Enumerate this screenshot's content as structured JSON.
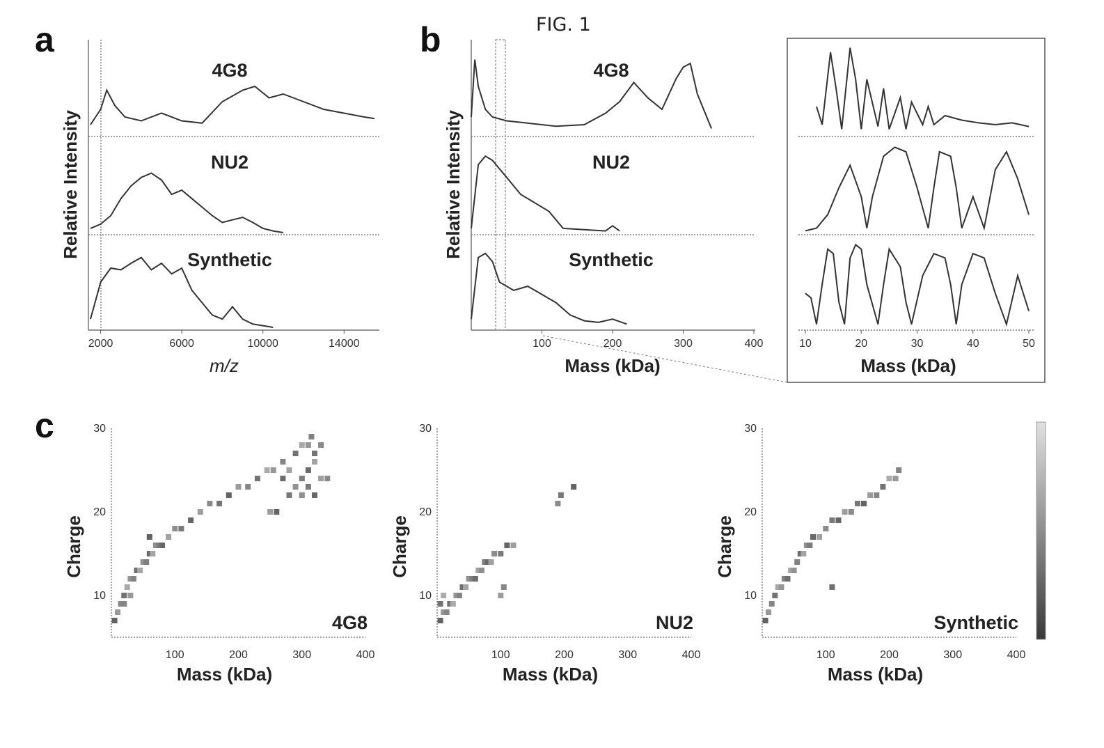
{
  "figure": {
    "title": "FIG. 1"
  },
  "panel_labels": {
    "a": "a",
    "b": "b",
    "c": "c"
  },
  "colors": {
    "trace": "#333333",
    "heat_low": "#d8d8d8",
    "heat_high": "#3a3a3a"
  },
  "chart_data": [
    {
      "id": "panel-a",
      "type": "line",
      "title": "",
      "xlabel": "m/z",
      "ylabel": "Relative Intensity",
      "xlim": [
        1500,
        15500
      ],
      "xticks": [
        "2000",
        "6000",
        "10000",
        "14000"
      ],
      "tick_values": [
        2000,
        6000,
        10000,
        14000
      ],
      "series": [
        {
          "name": "4G8",
          "x": [
            1500,
            2000,
            2300,
            2700,
            3200,
            4000,
            5000,
            6000,
            7000,
            8000,
            9000,
            9600,
            10300,
            11000,
            12000,
            13000,
            14000,
            15000,
            15500
          ],
          "y": [
            0.1,
            0.3,
            0.55,
            0.35,
            0.2,
            0.15,
            0.25,
            0.15,
            0.12,
            0.4,
            0.55,
            0.6,
            0.45,
            0.5,
            0.4,
            0.3,
            0.25,
            0.2,
            0.18
          ]
        },
        {
          "name": "NU2",
          "x": [
            1500,
            2000,
            2500,
            3000,
            3500,
            4000,
            4500,
            5000,
            5500,
            6000,
            6500,
            7000,
            7500,
            8000,
            8500,
            9000,
            9500,
            10000,
            10500,
            11000
          ],
          "y": [
            0.05,
            0.1,
            0.2,
            0.4,
            0.55,
            0.65,
            0.7,
            0.62,
            0.45,
            0.5,
            0.4,
            0.3,
            0.2,
            0.12,
            0.15,
            0.18,
            0.12,
            0.05,
            0.02,
            0.0
          ]
        },
        {
          "name": "Synthetic",
          "x": [
            1500,
            2000,
            2500,
            3000,
            3500,
            4000,
            4500,
            5000,
            5500,
            6000,
            6500,
            7000,
            7500,
            8000,
            8500,
            9000,
            9500,
            10000,
            10500
          ],
          "y": [
            0.1,
            0.55,
            0.72,
            0.7,
            0.78,
            0.85,
            0.7,
            0.78,
            0.65,
            0.72,
            0.45,
            0.3,
            0.15,
            0.1,
            0.25,
            0.1,
            0.04,
            0.02,
            0.0
          ]
        }
      ]
    },
    {
      "id": "panel-b-main",
      "type": "line",
      "title": "",
      "xlabel": "Mass (kDa)",
      "ylabel": "Relative Intensity",
      "xlim": [
        0,
        400
      ],
      "xticks": [
        "100",
        "200",
        "300",
        "400"
      ],
      "tick_values": [
        100,
        200,
        300,
        400
      ],
      "series": [
        {
          "name": "4G8",
          "x": [
            0,
            5,
            10,
            20,
            30,
            50,
            80,
            120,
            160,
            190,
            210,
            230,
            250,
            270,
            290,
            300,
            310,
            320,
            340
          ],
          "y": [
            0.2,
            0.95,
            0.6,
            0.3,
            0.2,
            0.15,
            0.12,
            0.08,
            0.1,
            0.25,
            0.4,
            0.65,
            0.45,
            0.3,
            0.7,
            0.85,
            0.9,
            0.5,
            0.05
          ]
        },
        {
          "name": "NU2",
          "x": [
            0,
            10,
            20,
            30,
            40,
            50,
            60,
            70,
            80,
            90,
            100,
            110,
            120,
            130,
            190,
            200,
            210
          ],
          "y": [
            0.05,
            0.8,
            0.9,
            0.85,
            0.75,
            0.65,
            0.55,
            0.45,
            0.4,
            0.35,
            0.3,
            0.25,
            0.15,
            0.05,
            0.02,
            0.08,
            0.02
          ]
        },
        {
          "name": "Synthetic",
          "x": [
            0,
            10,
            20,
            30,
            40,
            60,
            80,
            100,
            120,
            140,
            160,
            180,
            200,
            220
          ],
          "y": [
            0.1,
            0.85,
            0.9,
            0.8,
            0.55,
            0.45,
            0.5,
            0.4,
            0.3,
            0.15,
            0.08,
            0.06,
            0.1,
            0.04
          ]
        }
      ]
    },
    {
      "id": "panel-b-zoom",
      "type": "line",
      "title": "",
      "xlabel": "Mass (kDa)",
      "ylabel": "",
      "xlim": [
        10,
        50
      ],
      "xticks": [
        "10",
        "20",
        "30",
        "40",
        "50"
      ],
      "tick_values": [
        10,
        20,
        30,
        40,
        50
      ],
      "series": [
        {
          "name": "4G8",
          "x": [
            12,
            13,
            14.5,
            15.5,
            16.5,
            18,
            19,
            20,
            21,
            23,
            24,
            25,
            27,
            28,
            29,
            31,
            32,
            33,
            35,
            38,
            41,
            44,
            47,
            50
          ],
          "y": [
            0.3,
            0.1,
            0.9,
            0.5,
            0.05,
            0.95,
            0.6,
            0.05,
            0.6,
            0.08,
            0.5,
            0.05,
            0.4,
            0.05,
            0.35,
            0.1,
            0.3,
            0.1,
            0.2,
            0.15,
            0.12,
            0.1,
            0.12,
            0.08
          ]
        },
        {
          "name": "NU2",
          "x": [
            10,
            12,
            14,
            16,
            18,
            20,
            21,
            22,
            24,
            26,
            28,
            30,
            32,
            33,
            34,
            36,
            37,
            38,
            40,
            42,
            44,
            46,
            48,
            50
          ],
          "y": [
            0.02,
            0.05,
            0.2,
            0.5,
            0.75,
            0.4,
            0.05,
            0.4,
            0.85,
            0.95,
            0.9,
            0.5,
            0.05,
            0.5,
            0.9,
            0.85,
            0.5,
            0.05,
            0.4,
            0.05,
            0.7,
            0.9,
            0.6,
            0.2
          ]
        },
        {
          "name": "Synthetic",
          "x": [
            10,
            11,
            12,
            13,
            14,
            15,
            16,
            17,
            18,
            19,
            20,
            21,
            23,
            24,
            25,
            27,
            28,
            29,
            31,
            33,
            35,
            36,
            37,
            38,
            40,
            42,
            44,
            46,
            48,
            50
          ],
          "y": [
            0.4,
            0.35,
            0.05,
            0.5,
            0.9,
            0.85,
            0.3,
            0.05,
            0.8,
            0.95,
            0.9,
            0.5,
            0.05,
            0.5,
            0.9,
            0.7,
            0.3,
            0.05,
            0.6,
            0.85,
            0.8,
            0.5,
            0.05,
            0.5,
            0.85,
            0.8,
            0.4,
            0.05,
            0.6,
            0.2
          ]
        }
      ]
    },
    {
      "id": "panel-c-4g8",
      "type": "scatter",
      "title": "4G8",
      "xlabel": "Mass (kDa)",
      "ylabel": "Charge",
      "xlim": [
        0,
        400
      ],
      "ylim": [
        5,
        30
      ],
      "xticks": [
        "100",
        "200",
        "300",
        "400"
      ],
      "yticks": [
        "10",
        "20",
        "30"
      ],
      "xtick_values": [
        100,
        200,
        300,
        400
      ],
      "ytick_values": [
        10,
        20,
        30
      ],
      "points": [
        [
          5,
          7
        ],
        [
          10,
          8
        ],
        [
          15,
          9
        ],
        [
          20,
          10
        ],
        [
          25,
          11
        ],
        [
          30,
          12
        ],
        [
          35,
          12
        ],
        [
          40,
          13
        ],
        [
          45,
          13
        ],
        [
          50,
          14
        ],
        [
          55,
          14
        ],
        [
          60,
          15
        ],
        [
          65,
          15
        ],
        [
          70,
          16
        ],
        [
          75,
          16
        ],
        [
          80,
          16
        ],
        [
          90,
          17
        ],
        [
          100,
          18
        ],
        [
          110,
          18
        ],
        [
          125,
          19
        ],
        [
          140,
          20
        ],
        [
          155,
          21
        ],
        [
          170,
          21
        ],
        [
          185,
          22
        ],
        [
          200,
          23
        ],
        [
          215,
          23
        ],
        [
          230,
          24
        ],
        [
          245,
          25
        ],
        [
          255,
          25
        ],
        [
          270,
          26
        ],
        [
          290,
          27
        ],
        [
          300,
          28
        ],
        [
          310,
          28
        ],
        [
          315,
          29
        ],
        [
          270,
          24
        ],
        [
          280,
          25
        ],
        [
          290,
          23
        ],
        [
          300,
          24
        ],
        [
          310,
          25
        ],
        [
          320,
          26
        ],
        [
          300,
          22
        ],
        [
          310,
          23
        ],
        [
          320,
          22
        ],
        [
          330,
          24
        ],
        [
          340,
          24
        ],
        [
          280,
          22
        ],
        [
          260,
          20
        ],
        [
          250,
          20
        ],
        [
          330,
          28
        ],
        [
          320,
          27
        ],
        [
          60,
          17
        ],
        [
          30,
          10
        ],
        [
          20,
          9
        ]
      ]
    },
    {
      "id": "panel-c-nu2",
      "type": "scatter",
      "title": "NU2",
      "xlabel": "Mass (kDa)",
      "ylabel": "Charge",
      "xlim": [
        0,
        400
      ],
      "ylim": [
        5,
        30
      ],
      "xticks": [
        "100",
        "200",
        "300",
        "400"
      ],
      "yticks": [
        "10",
        "20",
        "30"
      ],
      "xtick_values": [
        100,
        200,
        300,
        400
      ],
      "ytick_values": [
        10,
        20,
        30
      ],
      "points": [
        [
          5,
          7
        ],
        [
          10,
          8
        ],
        [
          15,
          8
        ],
        [
          20,
          9
        ],
        [
          25,
          9
        ],
        [
          30,
          10
        ],
        [
          35,
          10
        ],
        [
          40,
          11
        ],
        [
          45,
          11
        ],
        [
          50,
          12
        ],
        [
          55,
          12
        ],
        [
          60,
          12
        ],
        [
          65,
          13
        ],
        [
          70,
          13
        ],
        [
          75,
          14
        ],
        [
          80,
          14
        ],
        [
          85,
          14
        ],
        [
          90,
          15
        ],
        [
          100,
          15
        ],
        [
          110,
          16
        ],
        [
          120,
          16
        ],
        [
          190,
          21
        ],
        [
          195,
          22
        ],
        [
          215,
          23
        ],
        [
          100,
          10
        ],
        [
          105,
          11
        ],
        [
          5,
          9
        ],
        [
          10,
          10
        ]
      ]
    },
    {
      "id": "panel-c-synthetic",
      "type": "scatter",
      "title": "Synthetic",
      "xlabel": "Mass (kDa)",
      "ylabel": "Charge",
      "xlim": [
        0,
        400
      ],
      "ylim": [
        5,
        30
      ],
      "xticks": [
        "100",
        "200",
        "300",
        "400"
      ],
      "yticks": [
        "10",
        "20",
        "30"
      ],
      "xtick_values": [
        100,
        200,
        300,
        400
      ],
      "ytick_values": [
        10,
        20,
        30
      ],
      "points": [
        [
          5,
          7
        ],
        [
          10,
          8
        ],
        [
          15,
          9
        ],
        [
          20,
          10
        ],
        [
          25,
          11
        ],
        [
          30,
          11
        ],
        [
          35,
          12
        ],
        [
          40,
          12
        ],
        [
          45,
          13
        ],
        [
          50,
          13
        ],
        [
          55,
          14
        ],
        [
          60,
          15
        ],
        [
          65,
          15
        ],
        [
          70,
          16
        ],
        [
          75,
          16
        ],
        [
          80,
          17
        ],
        [
          90,
          17
        ],
        [
          100,
          18
        ],
        [
          110,
          19
        ],
        [
          120,
          19
        ],
        [
          130,
          20
        ],
        [
          140,
          20
        ],
        [
          150,
          21
        ],
        [
          160,
          21
        ],
        [
          170,
          22
        ],
        [
          180,
          22
        ],
        [
          190,
          23
        ],
        [
          200,
          24
        ],
        [
          210,
          24
        ],
        [
          215,
          25
        ],
        [
          110,
          11
        ]
      ]
    }
  ]
}
